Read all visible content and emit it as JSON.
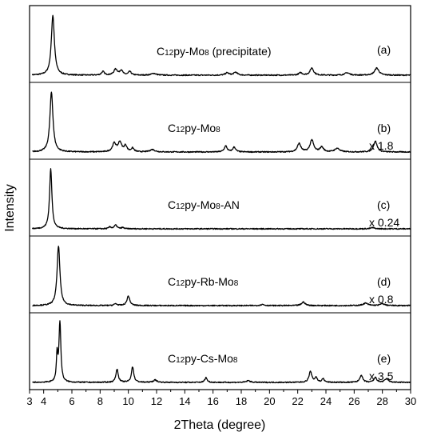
{
  "chart_data": {
    "type": "line",
    "xlabel": "2Theta (degree)",
    "ylabel": "Intensity",
    "xlim": [
      3,
      30
    ],
    "x_ticks": [
      3,
      4,
      6,
      8,
      10,
      12,
      14,
      16,
      18,
      20,
      22,
      24,
      26,
      28,
      30
    ],
    "grid": false,
    "series": [
      {
        "name": "C12py-Mo8 (precipitate)",
        "label_parts": [
          [
            "C",
            ""
          ],
          [
            "12",
            "sub"
          ],
          [
            "py-Mo",
            ""
          ],
          [
            "8",
            "sub"
          ],
          [
            " (precipitate)",
            ""
          ]
        ],
        "tag": "(a)",
        "scale": "",
        "peaks": [
          [
            4.65,
            1.0,
            0.13
          ],
          [
            8.2,
            0.06,
            0.12
          ],
          [
            9.1,
            0.1,
            0.15
          ],
          [
            9.5,
            0.08,
            0.12
          ],
          [
            10.1,
            0.06,
            0.12
          ],
          [
            11.8,
            0.03,
            0.2
          ],
          [
            17.0,
            0.04,
            0.15
          ],
          [
            17.6,
            0.05,
            0.15
          ],
          [
            22.2,
            0.04,
            0.15
          ],
          [
            23.0,
            0.12,
            0.15
          ],
          [
            25.5,
            0.04,
            0.2
          ],
          [
            27.6,
            0.12,
            0.18
          ]
        ]
      },
      {
        "name": "C12py-Mo8",
        "label_parts": [
          [
            "C",
            ""
          ],
          [
            "12",
            "sub"
          ],
          [
            "py-Mo",
            ""
          ],
          [
            "8",
            "sub"
          ]
        ],
        "tag": "(b)",
        "scale": "x 1.8",
        "peaks": [
          [
            4.55,
            1.0,
            0.13
          ],
          [
            9.0,
            0.14,
            0.15
          ],
          [
            9.4,
            0.16,
            0.15
          ],
          [
            9.8,
            0.1,
            0.12
          ],
          [
            10.3,
            0.06,
            0.12
          ],
          [
            11.7,
            0.04,
            0.2
          ],
          [
            16.9,
            0.1,
            0.12
          ],
          [
            17.5,
            0.08,
            0.12
          ],
          [
            22.1,
            0.14,
            0.15
          ],
          [
            23.0,
            0.2,
            0.15
          ],
          [
            23.7,
            0.08,
            0.15
          ],
          [
            24.8,
            0.06,
            0.2
          ],
          [
            27.5,
            0.18,
            0.15
          ]
        ]
      },
      {
        "name": "C12py-Mo8-AN",
        "label_parts": [
          [
            "C",
            ""
          ],
          [
            "12",
            "sub"
          ],
          [
            "py-Mo",
            ""
          ],
          [
            "8",
            "sub"
          ],
          [
            "-AN",
            ""
          ]
        ],
        "tag": "(c)",
        "scale": "x 0.24",
        "peaks": [
          [
            4.5,
            1.0,
            0.1
          ],
          [
            8.7,
            0.03,
            0.1
          ],
          [
            9.1,
            0.06,
            0.12
          ],
          [
            9.6,
            0.02,
            0.1
          ],
          [
            27.3,
            0.02,
            0.15
          ]
        ]
      },
      {
        "name": "C12py-Rb-Mo8",
        "label_parts": [
          [
            "C",
            ""
          ],
          [
            "12",
            "sub"
          ],
          [
            "py-Rb-Mo",
            ""
          ],
          [
            "8",
            "sub"
          ]
        ],
        "tag": "(d)",
        "scale": "x 0.8",
        "peaks": [
          [
            5.05,
            1.0,
            0.12
          ],
          [
            9.1,
            0.03,
            0.12
          ],
          [
            10.0,
            0.16,
            0.12
          ],
          [
            19.5,
            0.02,
            0.15
          ],
          [
            22.4,
            0.06,
            0.15
          ],
          [
            26.8,
            0.04,
            0.2
          ],
          [
            28.0,
            0.03,
            0.2
          ]
        ]
      },
      {
        "name": "C12py-Cs-Mo8",
        "label_parts": [
          [
            "C",
            ""
          ],
          [
            "12",
            "sub"
          ],
          [
            "py-Cs-Mo",
            ""
          ],
          [
            "8",
            "sub"
          ]
        ],
        "tag": "(e)",
        "scale": "x 3.5",
        "peaks": [
          [
            4.95,
            0.45,
            0.06
          ],
          [
            5.15,
            1.0,
            0.08
          ],
          [
            9.2,
            0.22,
            0.1
          ],
          [
            10.3,
            0.26,
            0.1
          ],
          [
            11.9,
            0.04,
            0.15
          ],
          [
            15.5,
            0.08,
            0.1
          ],
          [
            18.5,
            0.03,
            0.15
          ],
          [
            22.9,
            0.18,
            0.12
          ],
          [
            23.3,
            0.08,
            0.1
          ],
          [
            23.8,
            0.06,
            0.1
          ],
          [
            26.5,
            0.12,
            0.12
          ],
          [
            27.5,
            0.08,
            0.12
          ],
          [
            28.3,
            0.06,
            0.15
          ]
        ]
      }
    ]
  }
}
